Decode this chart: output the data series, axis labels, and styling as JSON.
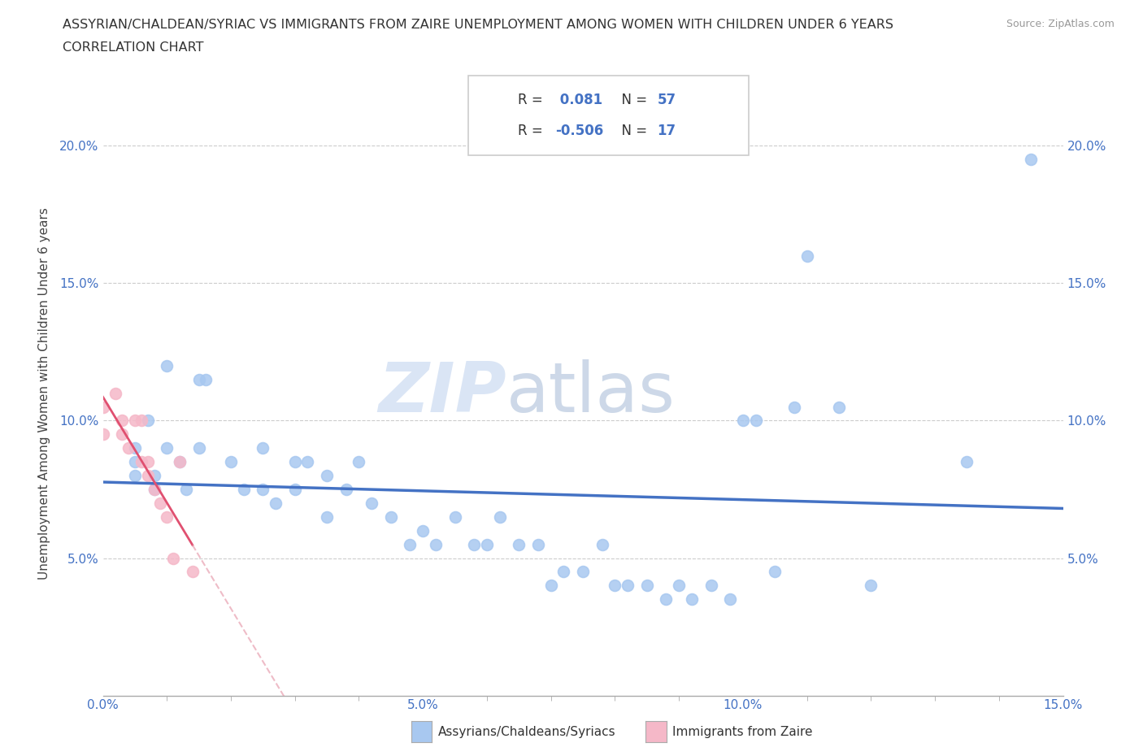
{
  "title_line1": "ASSYRIAN/CHALDEAN/SYRIAC VS IMMIGRANTS FROM ZAIRE UNEMPLOYMENT AMONG WOMEN WITH CHILDREN UNDER 6 YEARS",
  "title_line2": "CORRELATION CHART",
  "source": "Source: ZipAtlas.com",
  "ylabel": "Unemployment Among Women with Children Under 6 years",
  "xlim": [
    0.0,
    0.15
  ],
  "ylim": [
    0.0,
    0.22
  ],
  "xticks_major": [
    0.0,
    0.05,
    0.1,
    0.15
  ],
  "xticks_minor": [
    0.0,
    0.01,
    0.02,
    0.03,
    0.04,
    0.05,
    0.06,
    0.07,
    0.08,
    0.09,
    0.1,
    0.11,
    0.12,
    0.13,
    0.14,
    0.15
  ],
  "yticks": [
    0.05,
    0.1,
    0.15,
    0.2
  ],
  "xtick_labels": [
    "0.0%",
    "",
    "",
    "",
    "",
    "5.0%",
    "",
    "",
    "",
    "",
    "10.0%",
    "",
    "",
    "",
    "",
    "15.0%"
  ],
  "ytick_labels_left": [
    "5.0%",
    "10.0%",
    "15.0%",
    "20.0%"
  ],
  "ytick_labels_right": [
    "5.0%",
    "10.0%",
    "15.0%",
    "20.0%"
  ],
  "watermark_zip": "ZIP",
  "watermark_atlas": "atlas",
  "legend_r1_label": "R = ",
  "legend_r1_val": " 0.081",
  "legend_n1_label": "N = ",
  "legend_n1_val": "57",
  "legend_r2_label": "R = ",
  "legend_r2_val": "-0.506",
  "legend_n2_label": "N = ",
  "legend_n2_val": "17",
  "blue_color": "#A8C8F0",
  "pink_color": "#F5B8C8",
  "blue_line_color": "#4472C4",
  "pink_line_color": "#E05070",
  "pink_dash_color": "#E8A0B0",
  "label_color": "#4472C4",
  "grid_color": "#CCCCCC",
  "background_color": "#FFFFFF",
  "watermark_color": "#C8D8F0",
  "assyrians_x": [
    0.005,
    0.01,
    0.005,
    0.007,
    0.01,
    0.005,
    0.008,
    0.008,
    0.012,
    0.013,
    0.015,
    0.015,
    0.016,
    0.02,
    0.022,
    0.025,
    0.025,
    0.027,
    0.03,
    0.03,
    0.032,
    0.035,
    0.035,
    0.038,
    0.04,
    0.042,
    0.045,
    0.048,
    0.05,
    0.052,
    0.055,
    0.058,
    0.06,
    0.062,
    0.065,
    0.068,
    0.07,
    0.072,
    0.075,
    0.078,
    0.08,
    0.082,
    0.085,
    0.088,
    0.09,
    0.092,
    0.095,
    0.098,
    0.1,
    0.102,
    0.105,
    0.108,
    0.11,
    0.115,
    0.12,
    0.135,
    0.145
  ],
  "assyrians_y": [
    0.09,
    0.12,
    0.08,
    0.1,
    0.09,
    0.085,
    0.08,
    0.075,
    0.085,
    0.075,
    0.115,
    0.09,
    0.115,
    0.085,
    0.075,
    0.09,
    0.075,
    0.07,
    0.085,
    0.075,
    0.085,
    0.08,
    0.065,
    0.075,
    0.085,
    0.07,
    0.065,
    0.055,
    0.06,
    0.055,
    0.065,
    0.055,
    0.055,
    0.065,
    0.055,
    0.055,
    0.04,
    0.045,
    0.045,
    0.055,
    0.04,
    0.04,
    0.04,
    0.035,
    0.04,
    0.035,
    0.04,
    0.035,
    0.1,
    0.1,
    0.045,
    0.105,
    0.16,
    0.105,
    0.04,
    0.085,
    0.195
  ],
  "zaire_x": [
    0.002,
    0.003,
    0.003,
    0.004,
    0.005,
    0.006,
    0.006,
    0.007,
    0.007,
    0.008,
    0.009,
    0.01,
    0.011,
    0.012,
    0.014,
    0.0,
    0.0
  ],
  "zaire_y": [
    0.11,
    0.1,
    0.095,
    0.09,
    0.1,
    0.085,
    0.1,
    0.08,
    0.085,
    0.075,
    0.07,
    0.065,
    0.05,
    0.085,
    0.045,
    0.105,
    0.095
  ],
  "bottom_legend_blue_label": "Assyrians/Chaldeans/Syriacs",
  "bottom_legend_pink_label": "Immigrants from Zaire"
}
